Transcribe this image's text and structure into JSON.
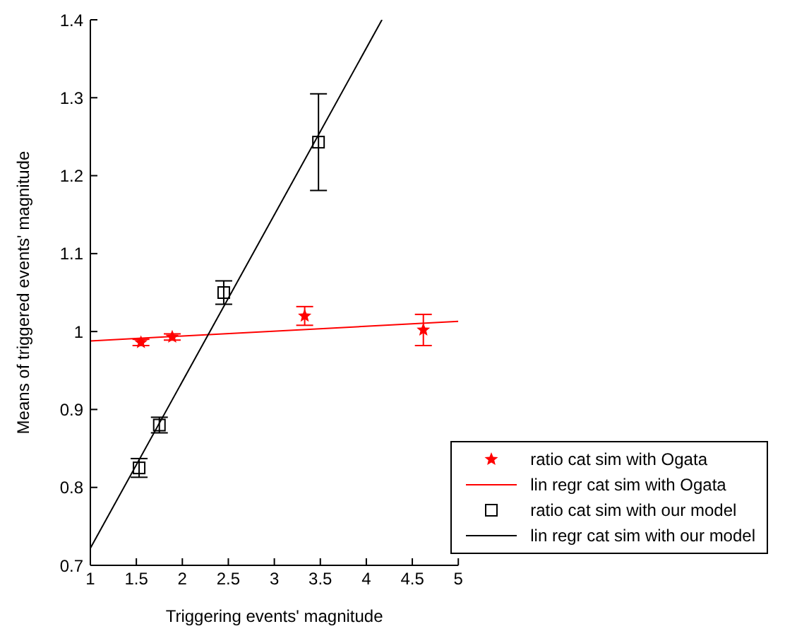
{
  "chart_data": {
    "type": "scatter",
    "xlabel": "Triggering events' magnitude",
    "ylabel": "Means of triggered events' magnitude",
    "xlim": [
      1,
      5
    ],
    "xticks": [
      1,
      1.5,
      2,
      2.5,
      3,
      3.5,
      4,
      4.5,
      5
    ],
    "ylim": [
      0.7,
      1.4
    ],
    "yticks": [
      0.7,
      0.8,
      0.9,
      1,
      1.1,
      1.2,
      1.3,
      1.4
    ],
    "grid": false,
    "legend": "bottom right",
    "series": [
      {
        "name": "ratio cat sim with Ogata",
        "marker": "star",
        "color": "#ff0000",
        "x": [
          1.55,
          1.89,
          3.33,
          4.62
        ],
        "values": [
          0.986,
          0.993,
          1.02,
          1.002
        ],
        "errors": [
          0.004,
          0.004,
          0.012,
          0.02
        ]
      },
      {
        "name": "lin regr cat sim with Ogata",
        "type": "line",
        "marker": "none",
        "color": "#ff0000",
        "x": [
          1,
          5
        ],
        "values": [
          0.988,
          1.013
        ]
      },
      {
        "name": "ratio cat sim with our model",
        "marker": "square",
        "color": "#000000",
        "x": [
          1.53,
          1.75,
          2.45,
          3.48
        ],
        "values": [
          0.825,
          0.88,
          1.05,
          1.243
        ],
        "errors": [
          0.012,
          0.01,
          0.015,
          0.062
        ]
      },
      {
        "name": "lin regr cat sim with our model",
        "type": "line",
        "marker": "none",
        "color": "#000000",
        "x": [
          1,
          4.17
        ],
        "values": [
          0.722,
          1.4
        ]
      }
    ]
  }
}
